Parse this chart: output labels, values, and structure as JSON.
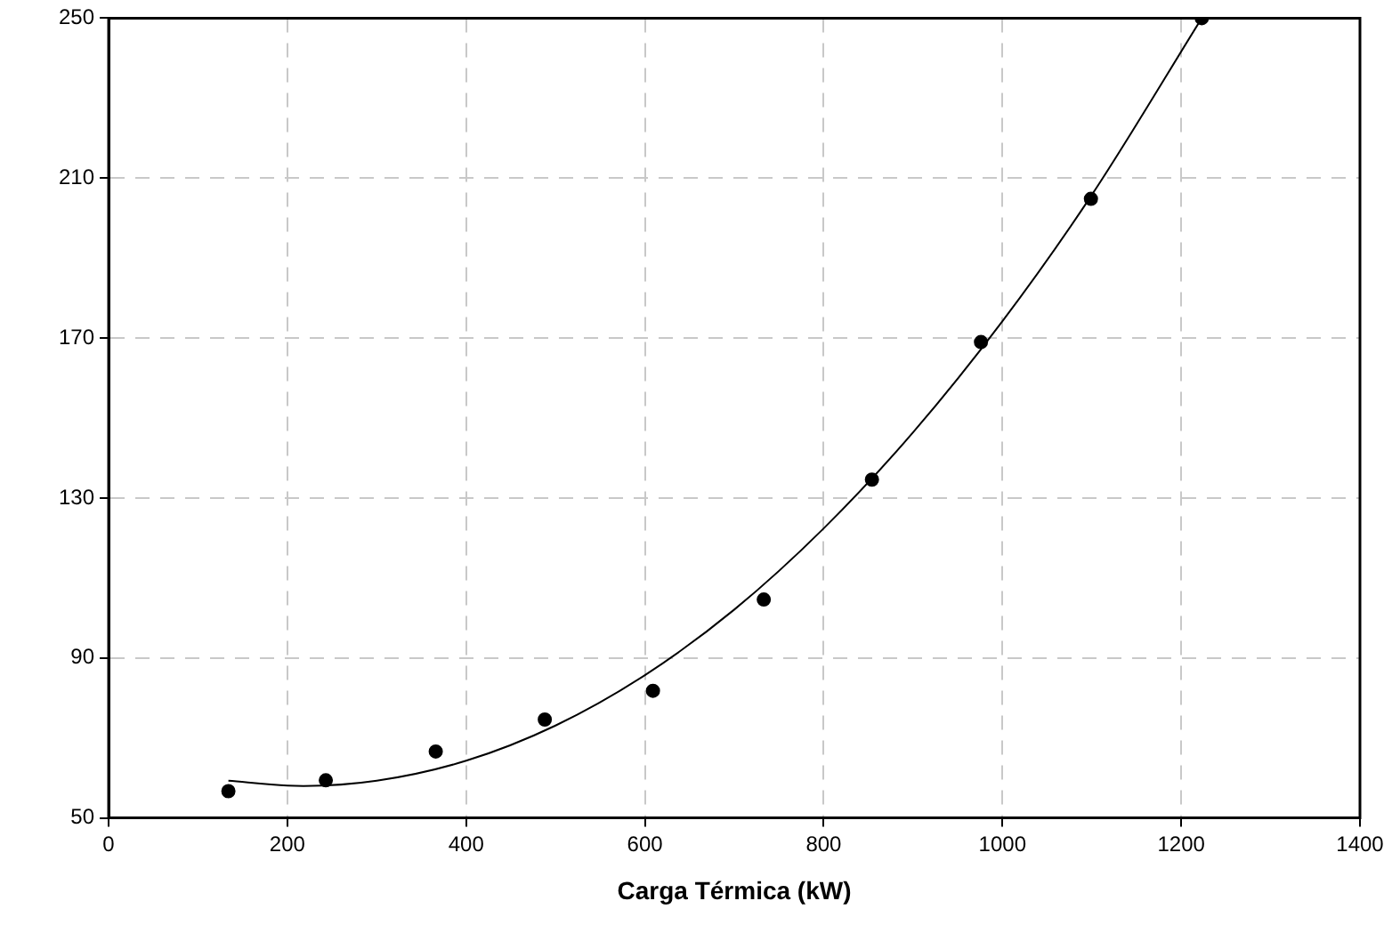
{
  "chart_data": {
    "type": "scatter",
    "xlabel": "Carga Térmica (kW)",
    "xlim": [
      0,
      1400
    ],
    "xticks": [
      0,
      200,
      400,
      600,
      800,
      1000,
      1200,
      1400
    ],
    "ylim": [
      50,
      250
    ],
    "yticks": [
      50,
      90,
      130,
      170,
      210,
      250
    ],
    "grid": true,
    "legend": false,
    "marker": "circle",
    "series": [
      {
        "color": "#000000",
        "x": [
          134,
          243,
          366,
          488,
          609,
          733,
          854,
          976,
          1099,
          1223
        ],
        "values": [
          56.7,
          59.4,
          66.6,
          74.6,
          81.8,
          104.6,
          134.6,
          169,
          204.8,
          250
        ]
      },
      {
        "type": "line",
        "color": "#000000",
        "marker": "none",
        "line_style": "solid",
        "x": [
          134,
          200,
          218,
          300,
          400,
          500,
          600,
          700,
          800,
          900,
          1000,
          1100,
          1223
        ],
        "values": [
          59.3,
          58.1,
          58,
          59.3,
          64.3,
          73.1,
          85.7,
          102.1,
          122.4,
          146.4,
          174.2,
          205.8,
          250
        ]
      }
    ]
  }
}
